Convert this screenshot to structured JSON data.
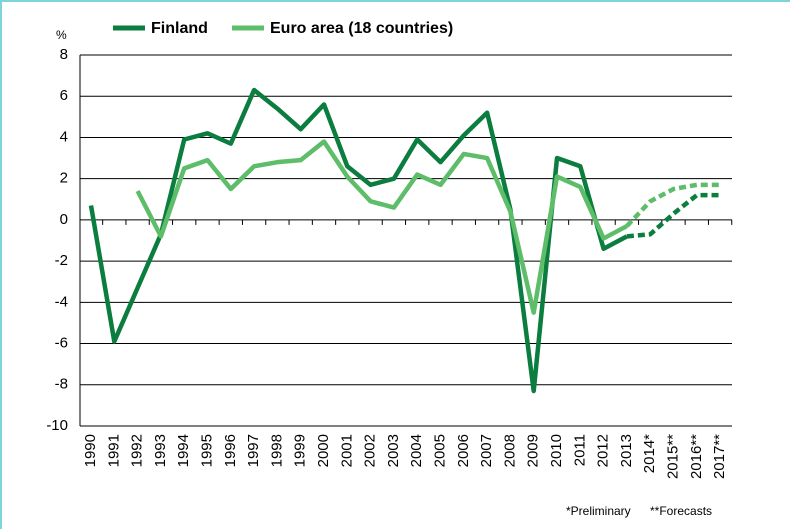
{
  "chart_data": {
    "type": "line",
    "unit": "%",
    "categories": [
      "1990",
      "1991",
      "1992",
      "1993",
      "1994",
      "1995",
      "1996",
      "1997",
      "1998",
      "1999",
      "2000",
      "2001",
      "2002",
      "2003",
      "2004",
      "2005",
      "2006",
      "2007",
      "2008",
      "2009",
      "2010",
      "2011",
      "2012",
      "2013",
      "2014*",
      "2015**",
      "2016**",
      "2017**"
    ],
    "series": [
      {
        "name": "Finland",
        "color": "#0b7d3e",
        "values": [
          0.7,
          -5.9,
          -3.3,
          -0.7,
          3.9,
          4.2,
          3.7,
          6.3,
          5.4,
          4.4,
          5.6,
          2.6,
          1.7,
          2.0,
          3.9,
          2.8,
          4.1,
          5.2,
          0.5,
          -8.3,
          3.0,
          2.6,
          -1.4,
          -0.8,
          -0.7,
          0.3,
          1.2,
          1.2
        ]
      },
      {
        "name": "Euro area (18 countries)",
        "color": "#5dbd68",
        "values": [
          null,
          null,
          1.4,
          -0.8,
          2.5,
          2.9,
          1.5,
          2.6,
          2.8,
          2.9,
          3.8,
          2.1,
          0.9,
          0.6,
          2.2,
          1.7,
          3.2,
          3.0,
          0.4,
          -4.5,
          2.1,
          1.6,
          -0.9,
          -0.3,
          0.9,
          1.5,
          1.7,
          1.7
        ]
      }
    ],
    "dashed_from": "2013",
    "ylim": [
      -10,
      8
    ],
    "yticks": [
      -10,
      -8,
      -6,
      -4,
      -2,
      0,
      2,
      4,
      6,
      8
    ],
    "grid": true,
    "notes": [
      "*Preliminary",
      "**Forecasts"
    ]
  }
}
